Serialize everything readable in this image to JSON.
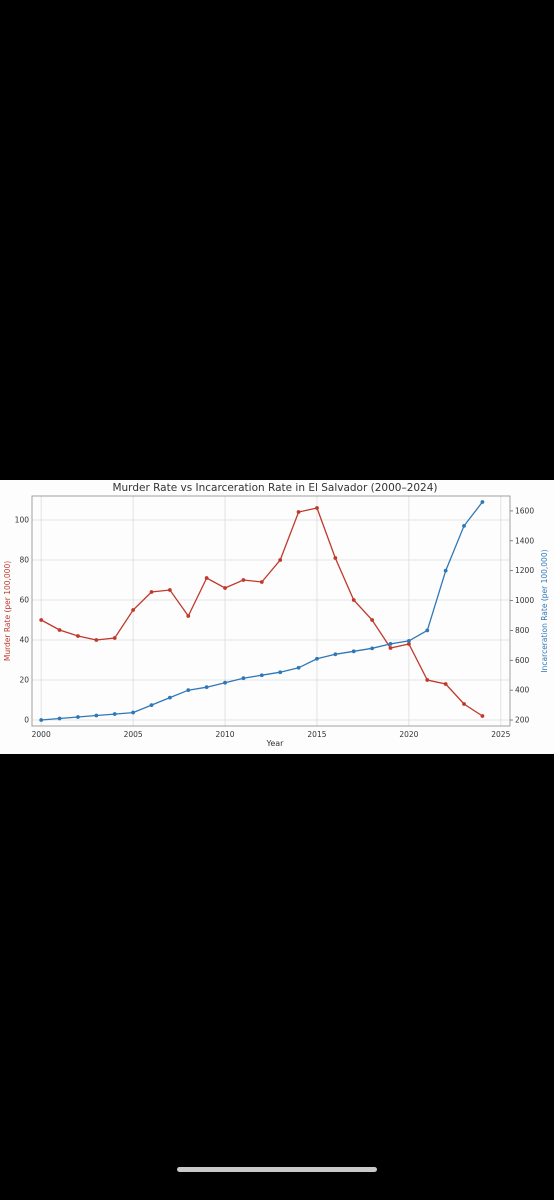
{
  "chart_data": {
    "type": "line",
    "title": "Murder Rate vs Incarceration Rate in El Salvador (2000–2024)",
    "xlabel": "Year",
    "ylabel_left": "Murder Rate (per 100,000)",
    "ylabel_right": "Incarceration Rate (per 100,000)",
    "xlim": [
      1999.5,
      2025.5
    ],
    "ylim_left": [
      -3,
      112
    ],
    "ylim_right": [
      160,
      1700
    ],
    "x_ticks": [
      2000,
      2005,
      2010,
      2015,
      2020,
      2025
    ],
    "y_ticks_left": [
      0,
      20,
      40,
      60,
      80,
      100
    ],
    "y_ticks_right": [
      200,
      400,
      600,
      800,
      1000,
      1200,
      1400,
      1600
    ],
    "grid": true,
    "x": [
      2000,
      2001,
      2002,
      2003,
      2004,
      2005,
      2006,
      2007,
      2008,
      2009,
      2010,
      2011,
      2012,
      2013,
      2014,
      2015,
      2016,
      2017,
      2018,
      2019,
      2020,
      2021,
      2022,
      2023,
      2024
    ],
    "series": [
      {
        "axis": "left",
        "color": "#c0392b",
        "values": [
          50,
          45,
          42,
          40,
          41,
          55,
          64,
          65,
          52,
          71,
          66,
          70,
          69,
          80,
          104,
          106,
          81,
          60,
          50,
          36,
          38,
          20,
          18,
          8,
          2
        ]
      },
      {
        "axis": "right",
        "color": "#2e78b7",
        "values": [
          200,
          210,
          220,
          230,
          240,
          250,
          300,
          350,
          400,
          420,
          450,
          480,
          500,
          520,
          550,
          610,
          640,
          660,
          680,
          710,
          730,
          800,
          1200,
          1500,
          1660
        ]
      }
    ]
  }
}
